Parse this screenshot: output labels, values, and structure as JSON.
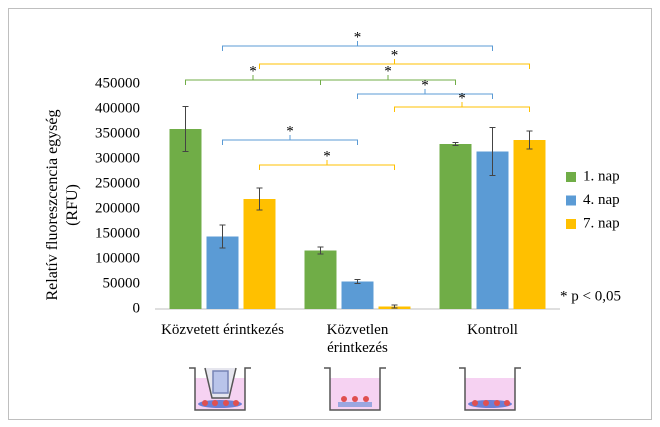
{
  "chart_data": {
    "type": "bar",
    "y_label": "Relatív fluoreszcencia egység (RFU)",
    "categories": [
      "Közvetett érintkezés",
      "Közvetlen érintkezés",
      "Kontroll"
    ],
    "series": [
      {
        "name": "1. nap",
        "color": "#70ad47",
        "values": [
          360000,
          117000,
          330000
        ],
        "errors": [
          45000,
          7000,
          3000
        ]
      },
      {
        "name": "4. nap",
        "color": "#5b9bd5",
        "values": [
          145000,
          55000,
          315000
        ],
        "errors": [
          23000,
          4000,
          48000
        ]
      },
      {
        "name": "7. nap",
        "color": "#ffc000",
        "values": [
          220000,
          5000,
          338000
        ],
        "errors": [
          22000,
          3000,
          18000
        ]
      }
    ],
    "ylim": [
      0,
      450000
    ],
    "yticks": [
      0,
      50000,
      100000,
      150000,
      200000,
      250000,
      300000,
      350000,
      400000,
      450000
    ],
    "legend": "right",
    "significance": [
      {
        "series": 1,
        "categories": [
          0,
          2
        ],
        "label": "*"
      },
      {
        "series": 2,
        "categories": [
          0,
          2
        ],
        "label": "*"
      },
      {
        "series": 0,
        "categories": [
          0,
          1
        ],
        "label": "*"
      },
      {
        "series": 0,
        "categories": [
          1,
          2
        ],
        "label": "*"
      },
      {
        "series": 1,
        "categories": [
          1,
          2
        ],
        "label": "*"
      },
      {
        "series": 2,
        "categories": [
          1,
          2
        ],
        "label": "*"
      },
      {
        "series": 1,
        "categories": [
          0,
          1
        ],
        "label": "*"
      },
      {
        "series": 2,
        "categories": [
          0,
          1
        ],
        "label": "*"
      }
    ],
    "note": "* p < 0,05"
  }
}
